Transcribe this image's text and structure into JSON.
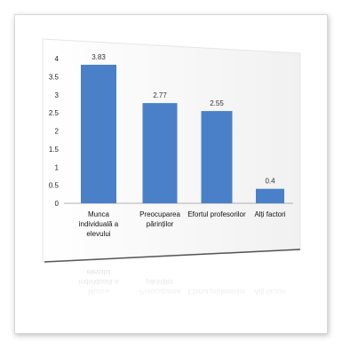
{
  "chart_data": {
    "type": "bar",
    "categories": [
      [
        "Munca",
        "individuală a",
        "elevului"
      ],
      [
        "Preocuparea",
        "părinților"
      ],
      [
        "Efortul profesorilor"
      ],
      [
        "Alți factori"
      ]
    ],
    "values": [
      3.83,
      2.77,
      2.55,
      0.4
    ],
    "value_labels": [
      "3.83",
      "2.77",
      "2.55",
      "0.4"
    ],
    "y_ticks": [
      "0",
      "0.5",
      "1",
      "1.5",
      "2",
      "2.5",
      "3",
      "3.5",
      "4"
    ],
    "ylim": [
      0,
      4
    ],
    "title": "",
    "xlabel": "",
    "ylabel": "",
    "grid": false,
    "bar_color": "#4a80c8"
  }
}
